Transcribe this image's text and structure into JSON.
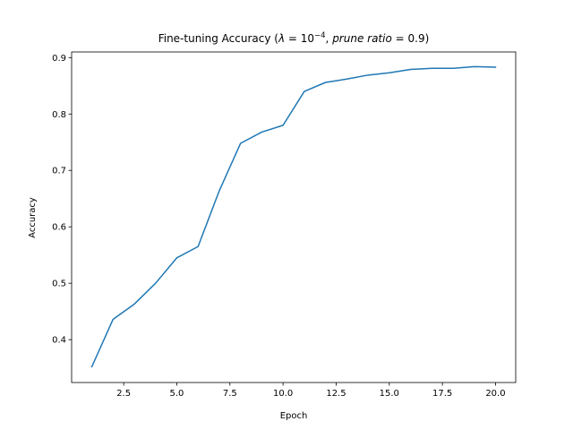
{
  "chart_data": {
    "type": "line",
    "title": {
      "prefix": "Fine-tuning Accuracy (",
      "lambda": "λ",
      "eq1": " = 10",
      "exponent": "−4",
      "comma": ", ",
      "prune_ratio": "prune ratio",
      "eq2": " = 0.9",
      "suffix": ")"
    },
    "xlabel": "Epoch",
    "ylabel": "Accuracy",
    "xlim": [
      0.05,
      20.95
    ],
    "ylim": [
      0.324,
      0.91
    ],
    "xticks": [
      2.5,
      5.0,
      7.5,
      10.0,
      12.5,
      15.0,
      17.5,
      20.0
    ],
    "xtick_labels": [
      "2.5",
      "5.0",
      "7.5",
      "10.0",
      "12.5",
      "15.0",
      "17.5",
      "20.0"
    ],
    "yticks": [
      0.4,
      0.5,
      0.6,
      0.7,
      0.8,
      0.9
    ],
    "ytick_labels": [
      "0.4",
      "0.5",
      "0.6",
      "0.7",
      "0.8",
      "0.9"
    ],
    "grid": false,
    "series": [
      {
        "color": "#1f77b4",
        "x": [
          1,
          2,
          3,
          4,
          5,
          6,
          7,
          8,
          9,
          10,
          11,
          12,
          13,
          14,
          15,
          16,
          17,
          18,
          19,
          20
        ],
        "y": [
          0.352,
          0.436,
          0.463,
          0.5,
          0.545,
          0.565,
          0.664,
          0.748,
          0.768,
          0.78,
          0.84,
          0.856,
          0.862,
          0.869,
          0.873,
          0.879,
          0.881,
          0.881,
          0.884,
          0.883
        ]
      }
    ]
  }
}
